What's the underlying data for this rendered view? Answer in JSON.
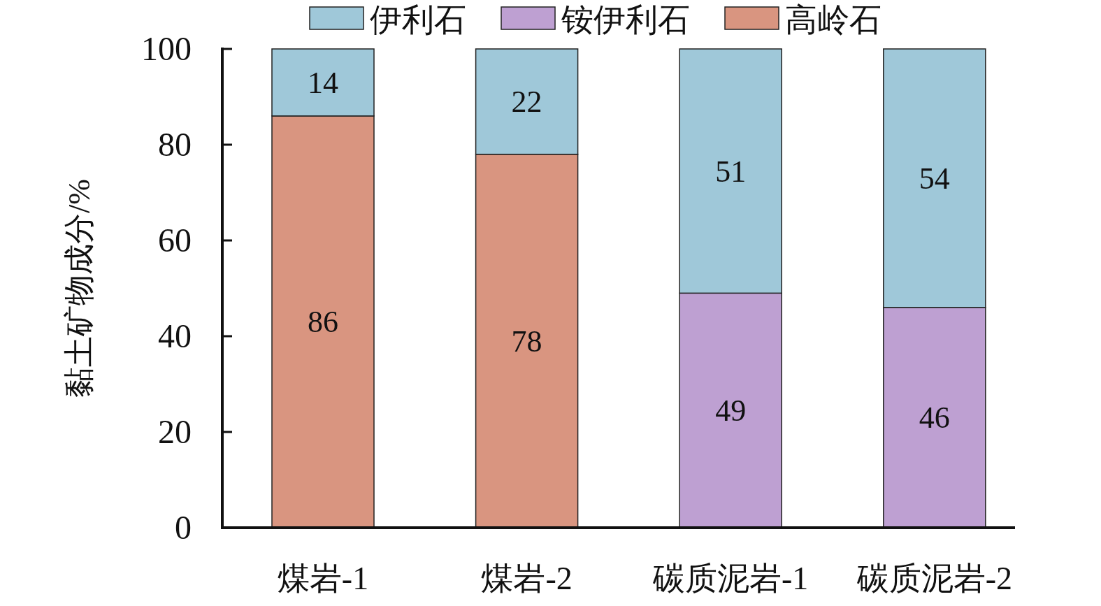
{
  "chart_data": {
    "type": "bar",
    "stacked": true,
    "ylabel": "黏土矿物成分/%",
    "categories": [
      "煤岩-1",
      "煤岩-2",
      "碳质泥岩-1",
      "碳质泥岩-2"
    ],
    "series": [
      {
        "name": "高岭石",
        "color": "#d99580",
        "values": [
          86,
          78,
          null,
          null
        ]
      },
      {
        "name": "铵伊利石",
        "color": "#bea0d2",
        "values": [
          null,
          null,
          49,
          46
        ]
      },
      {
        "name": "伊利石",
        "color": "#9fc8d9",
        "values": [
          14,
          22,
          51,
          54
        ]
      }
    ],
    "ylim": [
      0,
      100
    ],
    "yticks": [
      0,
      20,
      40,
      60,
      80,
      100
    ],
    "data_labels": true,
    "legend": "top",
    "grid": false
  }
}
